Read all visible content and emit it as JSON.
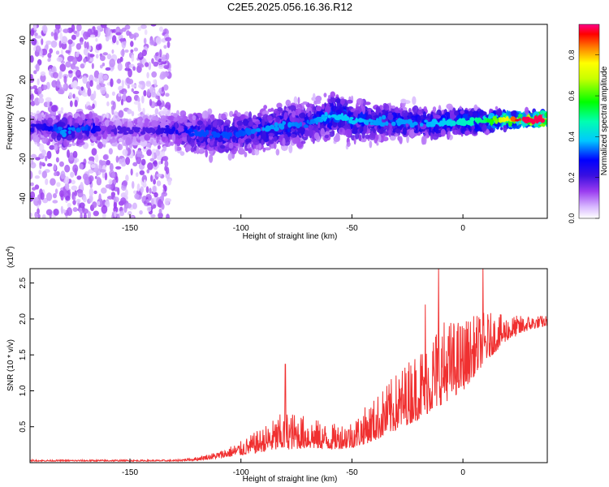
{
  "chart_data": [
    {
      "type": "heatmap",
      "title": "C2E5.2025.056.16.36.R12",
      "xlabel": "Height of straight line (km)",
      "ylabel": "Frequency (Hz)",
      "xlim": [
        -195,
        38
      ],
      "ylim": [
        -50,
        48
      ],
      "xticks": [
        "-150",
        "-100",
        "-50",
        "0"
      ],
      "yticks": [
        "-40",
        "-20",
        "0",
        "20",
        "40"
      ],
      "colorbar": {
        "label": "Normalized spectral amplitude",
        "range": [
          0,
          0.95
        ],
        "ticks": [
          "0.0",
          "0.2",
          "0.4",
          "0.6",
          "0.8"
        ]
      },
      "ridge": [
        {
          "x": -190,
          "y": -4,
          "width": 6,
          "amp": 0.18
        },
        {
          "x": -180,
          "y": -6,
          "width": 7,
          "amp": 0.28
        },
        {
          "x": -170,
          "y": -4,
          "width": 7,
          "amp": 0.25
        },
        {
          "x": -160,
          "y": -5,
          "width": 6,
          "amp": 0.15
        },
        {
          "x": -150,
          "y": -6,
          "width": 7,
          "amp": 0.15
        },
        {
          "x": -140,
          "y": -5,
          "width": 7,
          "amp": 0.15
        },
        {
          "x": -130,
          "y": -6,
          "width": 9,
          "amp": 0.2
        },
        {
          "x": -120,
          "y": -7,
          "width": 10,
          "amp": 0.25
        },
        {
          "x": -110,
          "y": -8,
          "width": 10,
          "amp": 0.25
        },
        {
          "x": -100,
          "y": -7,
          "width": 10,
          "amp": 0.25
        },
        {
          "x": -90,
          "y": -5,
          "width": 10,
          "amp": 0.28
        },
        {
          "x": -80,
          "y": -3,
          "width": 10,
          "amp": 0.28
        },
        {
          "x": -70,
          "y": -2,
          "width": 10,
          "amp": 0.26
        },
        {
          "x": -60,
          "y": 2,
          "width": 11,
          "amp": 0.3
        },
        {
          "x": -50,
          "y": 0,
          "width": 10,
          "amp": 0.3
        },
        {
          "x": -40,
          "y": -1,
          "width": 9,
          "amp": 0.28
        },
        {
          "x": -30,
          "y": -1,
          "width": 8,
          "amp": 0.28
        },
        {
          "x": -20,
          "y": -2,
          "width": 8,
          "amp": 0.28
        },
        {
          "x": -10,
          "y": -2,
          "width": 7,
          "amp": 0.3
        },
        {
          "x": 0,
          "y": -1,
          "width": 6,
          "amp": 0.35
        },
        {
          "x": 10,
          "y": -1,
          "width": 5,
          "amp": 0.4
        },
        {
          "x": 20,
          "y": 0,
          "width": 4,
          "amp": 0.6
        },
        {
          "x": 30,
          "y": 0,
          "width": 3,
          "amp": 0.85
        },
        {
          "x": 37,
          "y": 0,
          "width": 3,
          "amp": 0.95
        }
      ],
      "scatter_region": {
        "x": [
          -195,
          -132
        ],
        "y": [
          -50,
          48
        ],
        "amp": 0.12
      }
    },
    {
      "type": "line",
      "xlabel": "Height of straight line (km)",
      "ylabel": "SNR (10 * v/v)",
      "y_multiplier": "(x10",
      "y_multiplier_exp": "4",
      "y_multiplier_close": ")",
      "xlim": [
        -195,
        38
      ],
      "ylim": [
        0,
        2.7
      ],
      "xticks": [
        "-150",
        "-100",
        "-50",
        "0"
      ],
      "yticks": [
        "0.5",
        "1.0",
        "1.5",
        "2.0",
        "2.5"
      ],
      "color": "#f03030",
      "envelope": [
        {
          "x": -195,
          "base": 0.02,
          "noise": 0.02
        },
        {
          "x": -130,
          "base": 0.02,
          "noise": 0.02
        },
        {
          "x": -120,
          "base": 0.03,
          "noise": 0.05
        },
        {
          "x": -110,
          "base": 0.06,
          "noise": 0.1
        },
        {
          "x": -100,
          "base": 0.1,
          "noise": 0.2
        },
        {
          "x": -90,
          "base": 0.15,
          "noise": 0.35
        },
        {
          "x": -80,
          "base": 0.18,
          "noise": 0.55
        },
        {
          "x": -70,
          "base": 0.2,
          "noise": 0.45
        },
        {
          "x": -60,
          "base": 0.18,
          "noise": 0.35
        },
        {
          "x": -50,
          "base": 0.2,
          "noise": 0.4
        },
        {
          "x": -40,
          "base": 0.3,
          "noise": 0.6
        },
        {
          "x": -30,
          "base": 0.45,
          "noise": 0.8
        },
        {
          "x": -20,
          "base": 0.6,
          "noise": 1.0
        },
        {
          "x": -10,
          "base": 0.8,
          "noise": 1.2
        },
        {
          "x": 0,
          "base": 1.0,
          "noise": 1.0
        },
        {
          "x": 10,
          "base": 1.4,
          "noise": 0.7
        },
        {
          "x": 20,
          "base": 1.7,
          "noise": 0.35
        },
        {
          "x": 30,
          "base": 1.85,
          "noise": 0.2
        },
        {
          "x": 38,
          "base": 1.9,
          "noise": 0.15
        }
      ],
      "peaks": [
        {
          "x": -80,
          "y": 1.37
        },
        {
          "x": -11,
          "y": 2.7
        },
        {
          "x": 9,
          "y": 2.7
        },
        {
          "x": -17,
          "y": 2.2
        }
      ]
    }
  ]
}
